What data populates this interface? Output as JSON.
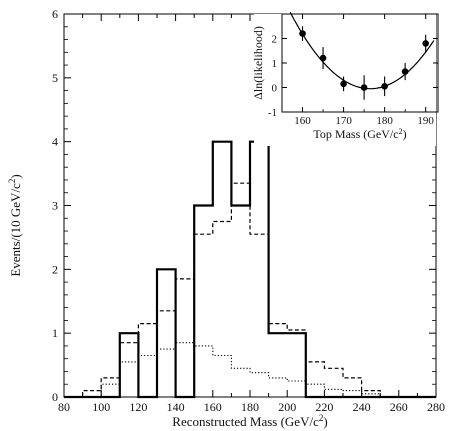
{
  "chart_data": [
    {
      "type": "histogram",
      "title": "",
      "xlabel": "Reconstructed Mass (GeV/c",
      "xlabel_sup": "2",
      "xlabel_close": ")",
      "ylabel": "Events/(10 GeV/c",
      "ylabel_sup": "2",
      "ylabel_close": ")",
      "xlim": [
        80,
        280
      ],
      "ylim": [
        0,
        6
      ],
      "xticks": [
        "80",
        "100",
        "120",
        "140",
        "160",
        "180",
        "200",
        "220",
        "240",
        "260",
        "280"
      ],
      "yticks": [
        "0",
        "1",
        "2",
        "3",
        "4",
        "5",
        "6"
      ],
      "bin_edges": [
        80,
        90,
        100,
        110,
        120,
        130,
        140,
        150,
        160,
        170,
        180,
        190,
        200,
        210,
        220,
        230,
        240,
        250,
        260,
        270,
        280
      ],
      "series": [
        {
          "style": "solid",
          "values": [
            0,
            0,
            0,
            1,
            0,
            2,
            0,
            3,
            4,
            3,
            4,
            1,
            1,
            0,
            0,
            0,
            0,
            0,
            0,
            0
          ]
        },
        {
          "style": "dashed",
          "values": [
            0,
            0.1,
            0.3,
            0.85,
            1.15,
            1.35,
            1.85,
            2.55,
            2.75,
            3.35,
            2.55,
            1.15,
            1.05,
            0.55,
            0.45,
            0.3,
            0.1,
            0,
            0,
            0
          ]
        },
        {
          "style": "dotted",
          "values": [
            0,
            0,
            0.2,
            0.55,
            0.65,
            0.75,
            0.85,
            0.8,
            0.65,
            0.45,
            0.38,
            0.3,
            0.25,
            0.2,
            0.12,
            0.1,
            0.05,
            0,
            0,
            0
          ]
        }
      ]
    },
    {
      "type": "scatter",
      "title": "",
      "xlabel": "Top Mass (GeV/c",
      "xlabel_sup": "2",
      "xlabel_close": ")",
      "ylabel": "Δln(likelihood)",
      "xlim": [
        155,
        193
      ],
      "ylim": [
        -1,
        3
      ],
      "xticks": [
        "160",
        "170",
        "180",
        "190"
      ],
      "yticks": [
        "-1",
        "0",
        "1",
        "2"
      ],
      "points": [
        {
          "x": 160,
          "y": 2.2,
          "err": 0.3
        },
        {
          "x": 165,
          "y": 1.2,
          "err": 0.45
        },
        {
          "x": 170,
          "y": 0.15,
          "err": 0.3
        },
        {
          "x": 175,
          "y": 0.0,
          "err": 0.5
        },
        {
          "x": 180,
          "y": 0.05,
          "err": 0.4
        },
        {
          "x": 185,
          "y": 0.65,
          "err": 0.35
        },
        {
          "x": 190,
          "y": 1.8,
          "err": 0.35
        }
      ],
      "fit": {
        "type": "parabola",
        "x0": 176.5,
        "a": 0.0082,
        "c": -0.05
      }
    }
  ]
}
